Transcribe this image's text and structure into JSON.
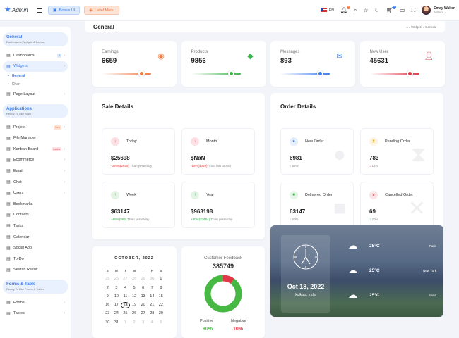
{
  "topbar": {
    "logo": "Admin",
    "bonus": "Bonus UI",
    "level_menu": "Level Menu",
    "lang": "EN",
    "notif_count": "4",
    "cart_count": "3",
    "user_name": "Emay Walter",
    "user_role": "Admin"
  },
  "sidebar": {
    "sections": [
      {
        "title": "General",
        "subtitle": "Dashboards,Widgets & Layout."
      },
      {
        "title": "Applications",
        "subtitle": "Ready To Use Apps"
      },
      {
        "title": "Forms & Table",
        "subtitle": "Ready To Use Froms & Tables"
      }
    ],
    "nav1": [
      {
        "label": "Dashboards",
        "icon": "home-icon",
        "badge": "3"
      },
      {
        "label": "Widgets",
        "icon": "widget-icon",
        "active": true
      }
    ],
    "widget_sub": [
      "General",
      "Chart"
    ],
    "nav2": [
      {
        "label": "Page Layout",
        "icon": "layout-icon"
      }
    ],
    "nav3": [
      {
        "label": "Project",
        "icon": "project-icon",
        "badge": "New"
      },
      {
        "label": "File Manager",
        "icon": "folder-icon"
      },
      {
        "label": "Kanban Board",
        "icon": "kanban-icon",
        "badge": "Latest"
      },
      {
        "label": "Ecommerce",
        "icon": "ecommerce-icon"
      },
      {
        "label": "Email",
        "icon": "email-icon"
      },
      {
        "label": "Chat",
        "icon": "chat-icon"
      },
      {
        "label": "Users",
        "icon": "users-icon"
      },
      {
        "label": "Bookmarks",
        "icon": "bookmark-icon"
      },
      {
        "label": "Contacts",
        "icon": "contacts-icon"
      },
      {
        "label": "Tasks",
        "icon": "tasks-icon"
      },
      {
        "label": "Calendar",
        "icon": "calendar-icon"
      },
      {
        "label": "Social App",
        "icon": "social-icon"
      },
      {
        "label": "To-Do",
        "icon": "todo-icon"
      },
      {
        "label": "Search Result",
        "icon": "search-icon"
      }
    ],
    "nav4": [
      {
        "label": "Forms",
        "icon": "forms-icon"
      },
      {
        "label": "Tables",
        "icon": "tables-icon"
      }
    ]
  },
  "page": {
    "title": "General",
    "crumb_widgets": "Widgets",
    "crumb_general": "General"
  },
  "stats": [
    {
      "label": "Earnings",
      "value": "6659",
      "color": "#ef7a43",
      "progress": 0.8
    },
    {
      "label": "Products",
      "value": "9856",
      "color": "#3fb54e",
      "progress": 0.8
    },
    {
      "label": "Messages",
      "value": "893",
      "color": "#3e7df0",
      "progress": 0.8
    },
    {
      "label": "New User",
      "value": "45631",
      "color": "#e03a4a",
      "progress": 0.8
    }
  ],
  "sale": {
    "title": "Sale Details",
    "items": [
      {
        "label": "Today",
        "value": "$25698",
        "change": "-36%($2658)",
        "note": "Than yesterday",
        "dir": "down"
      },
      {
        "label": "Month",
        "value": "$NaN",
        "change": "-15%($369)",
        "note": "Than last month",
        "dir": "down"
      },
      {
        "label": "Week",
        "value": "$63147",
        "change": "+65%($69)",
        "note": "Than yesterday",
        "dir": "up"
      },
      {
        "label": "Year",
        "value": "$963198",
        "change": "+90%($3654)",
        "note": "Than yesterday",
        "dir": "up"
      }
    ]
  },
  "order": {
    "title": "Order Details",
    "items": [
      {
        "label": "New Order",
        "value": "6981",
        "change": "58%",
        "dir": "up",
        "color": "#3e7df0",
        "icon": "tag-icon"
      },
      {
        "label": "Pending Order",
        "value": "783",
        "change": "12%",
        "dir": "down",
        "color": "#e9b21c",
        "icon": "hourglass-icon"
      },
      {
        "label": "Delivered Order",
        "value": "63147",
        "change": "50%",
        "dir": "up",
        "color": "#3fb54e",
        "icon": "truck-icon"
      },
      {
        "label": "Cancelled Order",
        "value": "69",
        "change": "20%",
        "dir": "up",
        "color": "#e03a4a",
        "icon": "cancel-icon"
      }
    ]
  },
  "calendar": {
    "month": "OCTOBER, 2022",
    "days": [
      "S",
      "M",
      "T",
      "W",
      "T",
      "F",
      "S"
    ],
    "cells": [
      "25",
      "26",
      "27",
      "28",
      "29",
      "30",
      "1",
      "2",
      "3",
      "4",
      "5",
      "6",
      "7",
      "8",
      "9",
      "10",
      "11",
      "12",
      "13",
      "14",
      "15",
      "16",
      "17",
      "18",
      "19",
      "20",
      "21",
      "22",
      "23",
      "24",
      "25",
      "26",
      "27",
      "28",
      "29",
      "30",
      "31",
      "1",
      "2",
      "3",
      "4",
      "5"
    ],
    "muted": [
      0,
      1,
      2,
      3,
      4,
      5,
      37,
      38,
      39,
      40,
      41
    ],
    "today": "18"
  },
  "feedback": {
    "title": "Customer Feedback",
    "total": "385749",
    "positive_label": "Positive",
    "negative_label": "Negative",
    "positive": "90%",
    "negative": "10%",
    "pos_color": "#47b843",
    "neg_color": "#e03a4a"
  },
  "weather": {
    "date": "Oct 18, 2022",
    "location": "kolkata, India",
    "rows": [
      {
        "temp": "25°C",
        "city": "Paris"
      },
      {
        "temp": "25°C",
        "city": "New York"
      },
      {
        "temp": "25°C",
        "city": "India"
      }
    ]
  }
}
